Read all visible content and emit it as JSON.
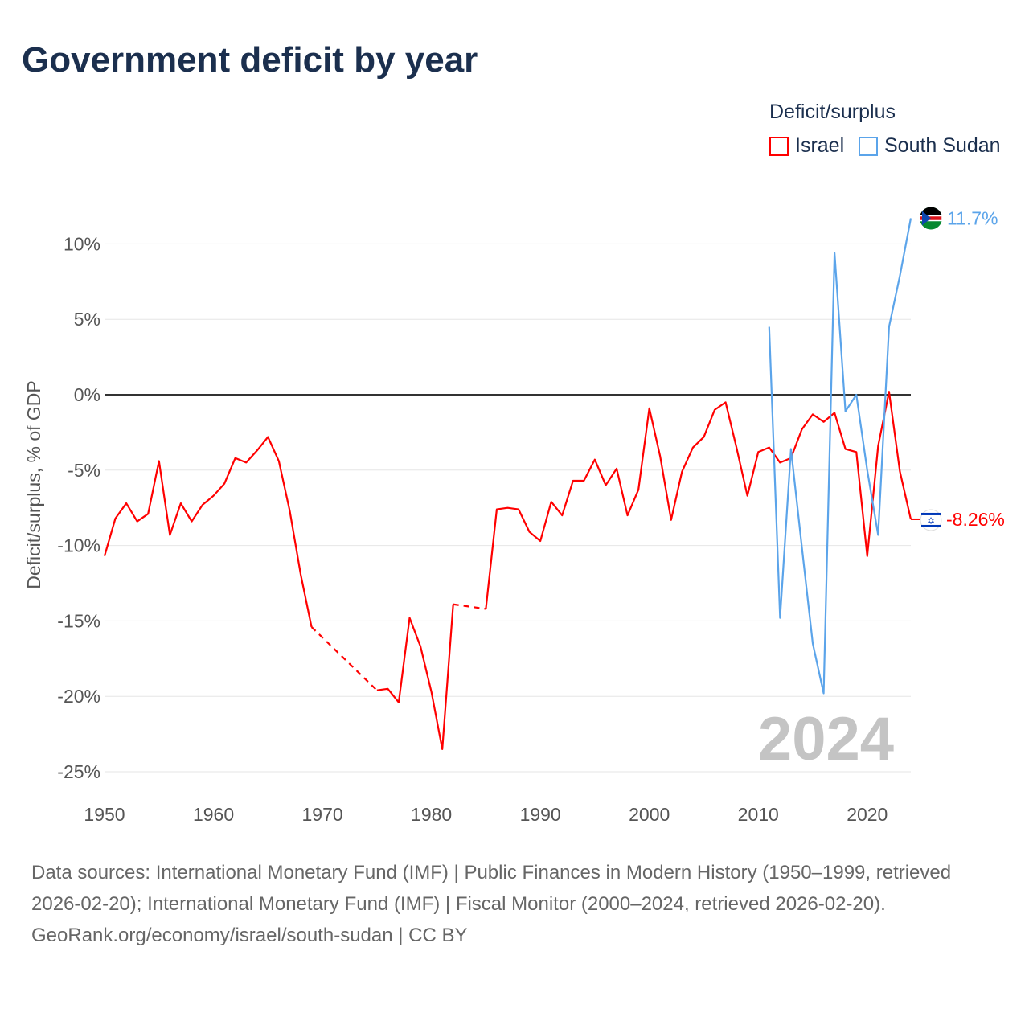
{
  "title": "Government deficit by year",
  "legend": {
    "title": "Deficit/surplus",
    "items": [
      "Israel",
      "South Sudan"
    ]
  },
  "colors": {
    "Israel": "#ff0000",
    "South Sudan": "#5ba4ea"
  },
  "year_label": "2024",
  "end_labels": {
    "Israel": "-8.26%",
    "South Sudan": "11.7%"
  },
  "source": {
    "text": "Data sources: International Monetary Fund (IMF) | Public Finances in Modern History (1950–1999, retrieved 2026-02-20); International Monetary Fund (IMF) | Fiscal Monitor (2000–2024, retrieved 2026-02-20).",
    "link": "GeoRank.org/economy/israel/south-sudan | CC BY"
  },
  "chart_data": {
    "type": "line",
    "ylabel": "Deficit/surplus, % of GDP",
    "xlabel": "",
    "xlim": [
      1950,
      2024
    ],
    "ylim": [
      -25,
      12
    ],
    "x_ticks": [
      "1950",
      "1960",
      "1970",
      "1980",
      "1990",
      "2000",
      "2010",
      "2020"
    ],
    "y_ticks": [
      "10%",
      "5%",
      "0%",
      "-5%",
      "-10%",
      "-15%",
      "-20%",
      "-25%"
    ],
    "y_tick_values": [
      10,
      5,
      0,
      -5,
      -10,
      -15,
      -20,
      -25
    ],
    "series": [
      {
        "name": "Israel",
        "x_start": 1950,
        "values": [
          -10.7,
          -8.2,
          -7.2,
          -8.4,
          -7.9,
          -4.4,
          -9.3,
          -7.2,
          -8.4,
          -7.3,
          -6.7,
          -5.9,
          -4.2,
          -4.5,
          -3.7,
          -2.8,
          -4.4,
          -7.7,
          -11.9,
          -15.4,
          null,
          null,
          null,
          null,
          null,
          -19.6,
          -19.5,
          -20.4,
          -14.8,
          -16.7,
          -19.7,
          -23.5,
          -13.9,
          null,
          null,
          -14.2,
          -7.6,
          -7.5,
          -7.6,
          -9.1,
          -9.7,
          -7.1,
          -8.0,
          -5.7,
          -5.7,
          -4.3,
          -6.0,
          -4.9,
          -8.0,
          -6.3,
          -0.9,
          -4.1,
          -8.3,
          -5.1,
          -3.5,
          -2.8,
          -1.0,
          -0.5,
          -3.5,
          -6.7,
          -3.8,
          -3.5,
          -4.5,
          -4.2,
          -2.3,
          -1.3,
          -1.8,
          -1.2,
          -3.6,
          -3.8,
          -10.7,
          -3.4,
          0.2,
          -5.1,
          -8.26
        ]
      },
      {
        "name": "South Sudan",
        "x_start": 2011,
        "values": [
          4.5,
          -14.8,
          -3.6,
          -10.1,
          -16.5,
          -19.8,
          9.4,
          -1.1,
          0.0,
          -5.0,
          -9.3,
          4.5,
          7.9,
          11.7
        ]
      }
    ]
  }
}
